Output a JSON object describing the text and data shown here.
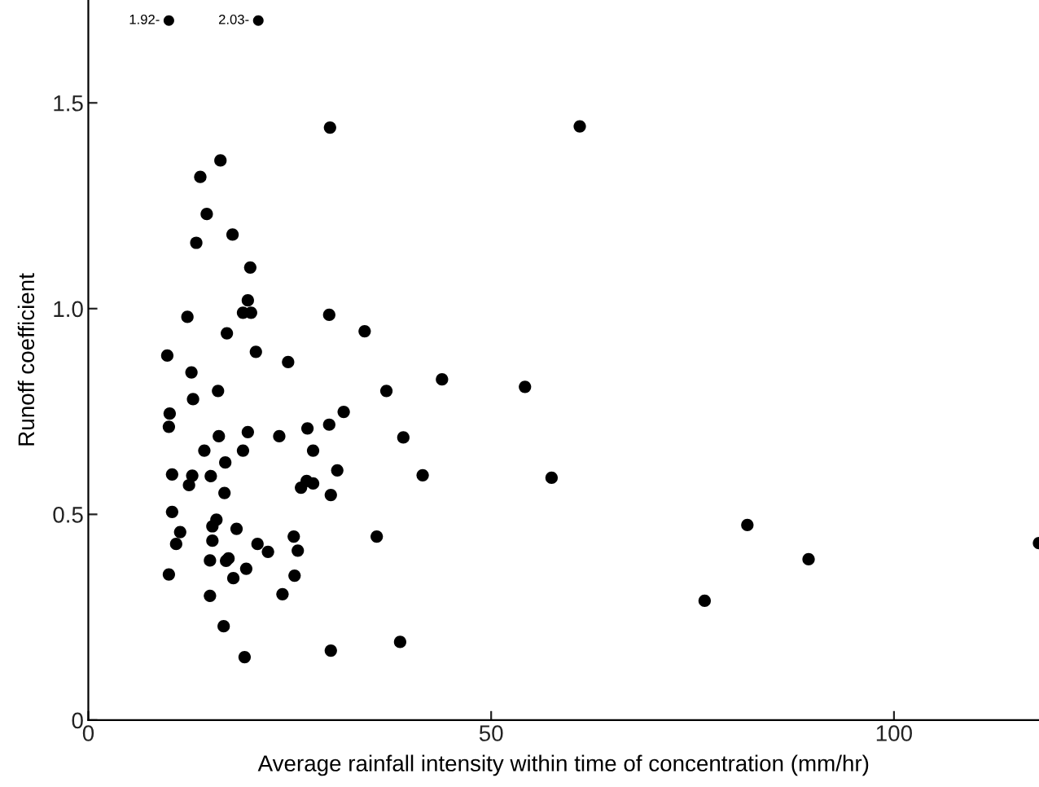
{
  "chart_data": {
    "type": "scatter",
    "xlabel": "Average rainfall intensity within time of concentration (mm/hr)",
    "ylabel": "Runoff coefficient",
    "xlim": [
      0,
      118
    ],
    "xticks": [
      0,
      50,
      100
    ],
    "ylim": [
      0,
      1.75
    ],
    "yticks": [
      0,
      {
        "value": 0.5,
        "label": "0.5"
      },
      {
        "value": 1.0,
        "label": "1.0"
      },
      {
        "value": 1.5,
        "label": "1.5"
      }
    ],
    "grid": false,
    "marker": "circle",
    "annotations": [
      {
        "text": "1.92-",
        "x": 10.0,
        "y": 1.7
      },
      {
        "text": "2.03-",
        "x": 21.1,
        "y": 1.7
      }
    ],
    "series": [
      {
        "color": "#000000",
        "x": [
          16.4,
          13.9,
          14.7,
          13.4,
          17.9,
          20.1,
          19.8,
          19.2,
          20.2,
          12.3,
          17.2,
          20.8,
          24.8,
          9.8,
          12.8,
          13.0,
          16.1,
          10.1,
          10.0,
          16.2,
          19.8,
          23.7,
          14.4,
          19.2,
          17.0,
          10.4,
          12.9,
          15.2,
          12.5,
          16.9,
          26.4,
          10.4,
          11.4,
          10.9,
          15.9,
          15.4,
          15.4,
          18.4,
          21.0,
          22.3,
          25.5,
          26.0,
          15.1,
          17.4,
          17.1,
          19.6,
          18.0,
          10.0,
          25.6,
          24.1,
          15.1,
          16.8,
          19.4,
          30.0,
          29.9,
          34.3,
          43.9,
          54.2,
          37.0,
          31.7,
          27.2,
          29.9,
          39.1,
          27.9,
          30.9,
          41.5,
          27.1,
          27.9,
          30.1,
          35.8,
          30.1,
          38.7,
          61.0,
          57.5,
          81.8,
          76.5,
          89.4,
          118
        ],
        "values": [
          1.36,
          1.32,
          1.23,
          1.16,
          1.18,
          1.1,
          1.02,
          0.99,
          0.99,
          0.98,
          0.94,
          0.895,
          0.87,
          0.886,
          0.845,
          0.78,
          0.8,
          0.745,
          0.713,
          0.69,
          0.7,
          0.69,
          0.655,
          0.655,
          0.626,
          0.597,
          0.594,
          0.593,
          0.571,
          0.552,
          0.565,
          0.506,
          0.457,
          0.428,
          0.487,
          0.471,
          0.436,
          0.465,
          0.428,
          0.409,
          0.446,
          0.412,
          0.388,
          0.393,
          0.387,
          0.368,
          0.345,
          0.354,
          0.351,
          0.306,
          0.302,
          0.228,
          0.153,
          1.44,
          0.985,
          0.945,
          0.828,
          0.81,
          0.8,
          0.749,
          0.709,
          0.718,
          0.687,
          0.655,
          0.607,
          0.595,
          0.581,
          0.575,
          0.547,
          0.446,
          0.169,
          0.19,
          1.443,
          0.589,
          0.474,
          0.29,
          0.391,
          0.43
        ]
      }
    ]
  }
}
